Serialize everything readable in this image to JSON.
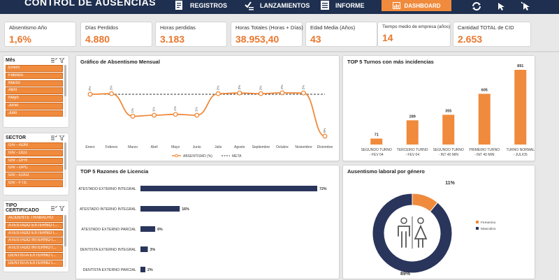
{
  "app": {
    "title": "CONTROL DE AUSENCIAS"
  },
  "nav": {
    "registros": "REGISTROS",
    "lanzamientos": "LANZAMIENTOS",
    "informe": "INFORME",
    "dashboard": "DASHBOARD"
  },
  "kpis": [
    {
      "label": "Absentismo Año",
      "value": "1,6%"
    },
    {
      "label": "Días Perdidos",
      "value": "4.880"
    },
    {
      "label": "Horas perdidas",
      "value": "3.183"
    },
    {
      "label": "Horas Totales (Horas + Días)",
      "value": "38.953,40"
    },
    {
      "label": "Edad Media (Años)",
      "value": "43"
    },
    {
      "label": "Tiempo medio de empresa (años)",
      "value": "14"
    },
    {
      "label": "Cantidad TOTAL de CID",
      "value": "2.653"
    }
  ],
  "slicers": {
    "mes": {
      "title": "Mês",
      "items": [
        "Enero",
        "Febrero",
        "Marzo",
        "Abril",
        "Mayo",
        "Junio",
        "Julio"
      ]
    },
    "sector": {
      "title": "SECTOR",
      "items": [
        "Grv - ADM",
        "Grv - DDJ",
        "Grv - DFR",
        "Grv - DPC",
        "Grv - EIXO",
        "Grv - FTE"
      ]
    },
    "tipo": {
      "title": "TIPO CERTIFICADO",
      "items": [
        "ACIDENTE TRABALHO",
        "ATESTADO EXTERNO I...",
        "ATESTADO EXTERNO I...",
        "ATESTADO INTERNO I...",
        "ATESTADO INTERNO I...",
        "DENTISTA EXTERNO I...",
        "DENTISTA EXTERNO I..."
      ]
    }
  },
  "colors": {
    "accent": "#f08a3c",
    "navy": "#1e2f4f",
    "bar_navy": "#2a355c"
  },
  "chart_data": [
    {
      "type": "line",
      "title": "Gráfico de Absentismo Mensual",
      "categories": [
        "Enero",
        "Febrero",
        "Marzo",
        "Abril",
        "Mayo",
        "Junio",
        "Julio",
        "Agosto",
        "Septiembre",
        "Octubre",
        "Noviembre",
        "Diciembre"
      ],
      "series": [
        {
          "name": "ABSENTISMO (%)",
          "values": [
            0.02,
            0.02,
            0.01,
            0.01,
            0.01,
            0.01,
            0.02,
            0.02,
            0.02,
            0.02,
            0.02,
            0.0
          ],
          "labels": [
            "2%",
            "2%",
            "1%",
            "1%",
            "1%",
            "1%",
            "2%",
            "2%",
            "2%",
            "2%",
            "2%",
            "0%"
          ]
        },
        {
          "name": "META",
          "values": [
            0.02,
            0.02,
            0.02,
            0.02,
            0.02,
            0.02,
            0.02,
            0.02,
            0.02,
            0.02,
            0.02,
            0.02
          ]
        }
      ],
      "meta_label": "2%"
    },
    {
      "type": "bar",
      "title": "TOP 5 Turnos con más incidencias",
      "categories": [
        "SEGUNDO TURNO - FEV 04",
        "TERCEIRO TURNO - FEV 04",
        "SEGUNDO TURNO - INT 40 MIN",
        "PRIMEIRO TURNO - INT 40 MIN",
        "TURNO NORMAL - JULIO5"
      ],
      "values": [
        71,
        289,
        355,
        605,
        891
      ]
    },
    {
      "type": "bar",
      "orientation": "horizontal",
      "title": "TOP 5 Razones de Licencia",
      "categories": [
        "ATESTADO EXTERNO INTEGRAL",
        "ATESTADO INTERNO INTEGRAL",
        "ATESTADO EXTERNO PARCIAL",
        "DENTISTA EXTERNO INTEGRAL",
        "DENTISTA EXTERNO PARCIAL"
      ],
      "values": [
        72,
        16,
        6,
        3,
        2
      ],
      "labels": [
        "72%",
        "16%",
        "6%",
        "3%",
        "2%"
      ]
    },
    {
      "type": "pie",
      "title": "Ausentismo laboral por género",
      "categories": [
        "Femenino",
        "Masculino"
      ],
      "values": [
        11,
        89
      ],
      "labels": [
        "11%",
        "89%"
      ]
    }
  ]
}
